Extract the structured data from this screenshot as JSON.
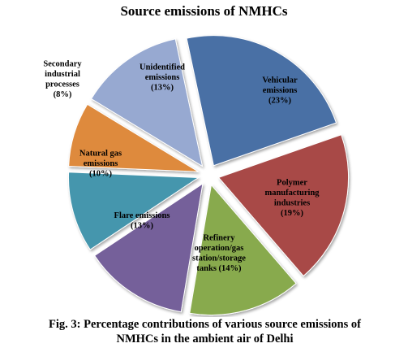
{
  "chart_data": {
    "type": "pie",
    "title": "Source emissions of NMHCs",
    "slices": [
      {
        "label": [
          "Vehicular",
          "emissions",
          "(23%)"
        ],
        "name": "Vehicular emissions",
        "value": 23,
        "color": "#4a6fa5"
      },
      {
        "label": [
          "Polymer",
          "manufacturing",
          "industries",
          "(19%)"
        ],
        "name": "Polymer manufacturing industries",
        "value": 19,
        "color": "#a84a47"
      },
      {
        "label": [
          "Refinery",
          "operation/gas",
          "station/storage",
          "tanks (14%)"
        ],
        "name": "Refinery operation/gas station/storage tanks",
        "value": 14,
        "color": "#88aa4e"
      },
      {
        "label": [
          "Flare emissions",
          "(13%)"
        ],
        "name": "Flare emissions",
        "value": 13,
        "color": "#74619a"
      },
      {
        "label": [
          "Natural gas",
          "emissions",
          "(10%)"
        ],
        "name": "Natural gas emissions",
        "value": 10,
        "color": "#4596ad"
      },
      {
        "label": [
          "Secondary",
          "industrial",
          "processes",
          "(8%)"
        ],
        "name": "Secondary industrial processes",
        "value": 8,
        "color": "#de8a3e"
      },
      {
        "label": [
          "Unidentified",
          "emissions",
          "(13%)"
        ],
        "name": "Unidentified emissions",
        "value": 13,
        "color": "#97a9d1"
      }
    ]
  },
  "caption": {
    "line1": "Fig. 3: Percentage contributions of various source emissions  of",
    "line2": "NMHCs in the ambient air of Delhi"
  }
}
